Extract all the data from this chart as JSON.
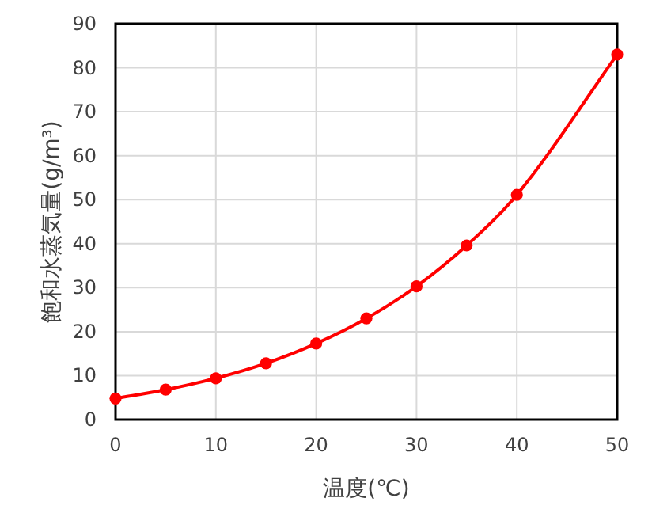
{
  "chart_data": {
    "type": "line",
    "xlabel": "温度(℃)",
    "ylabel": "飽和水蒸気量(g/m³)",
    "x": [
      0,
      5,
      10,
      15,
      20,
      25,
      30,
      35,
      40,
      50
    ],
    "series": [
      {
        "color": "#ff0000",
        "values": [
          4.8,
          6.8,
          9.4,
          12.8,
          17.3,
          23.0,
          30.3,
          39.6,
          51.1,
          83.0
        ]
      }
    ],
    "xlim": [
      0,
      50
    ],
    "xticks": [
      0,
      10,
      20,
      30,
      40,
      50
    ],
    "ylim": [
      0,
      90
    ],
    "yticks": [
      0,
      10,
      20,
      30,
      40,
      50,
      60,
      70,
      80,
      90
    ],
    "grid": true,
    "marker": "circle",
    "line_style": "solid"
  }
}
